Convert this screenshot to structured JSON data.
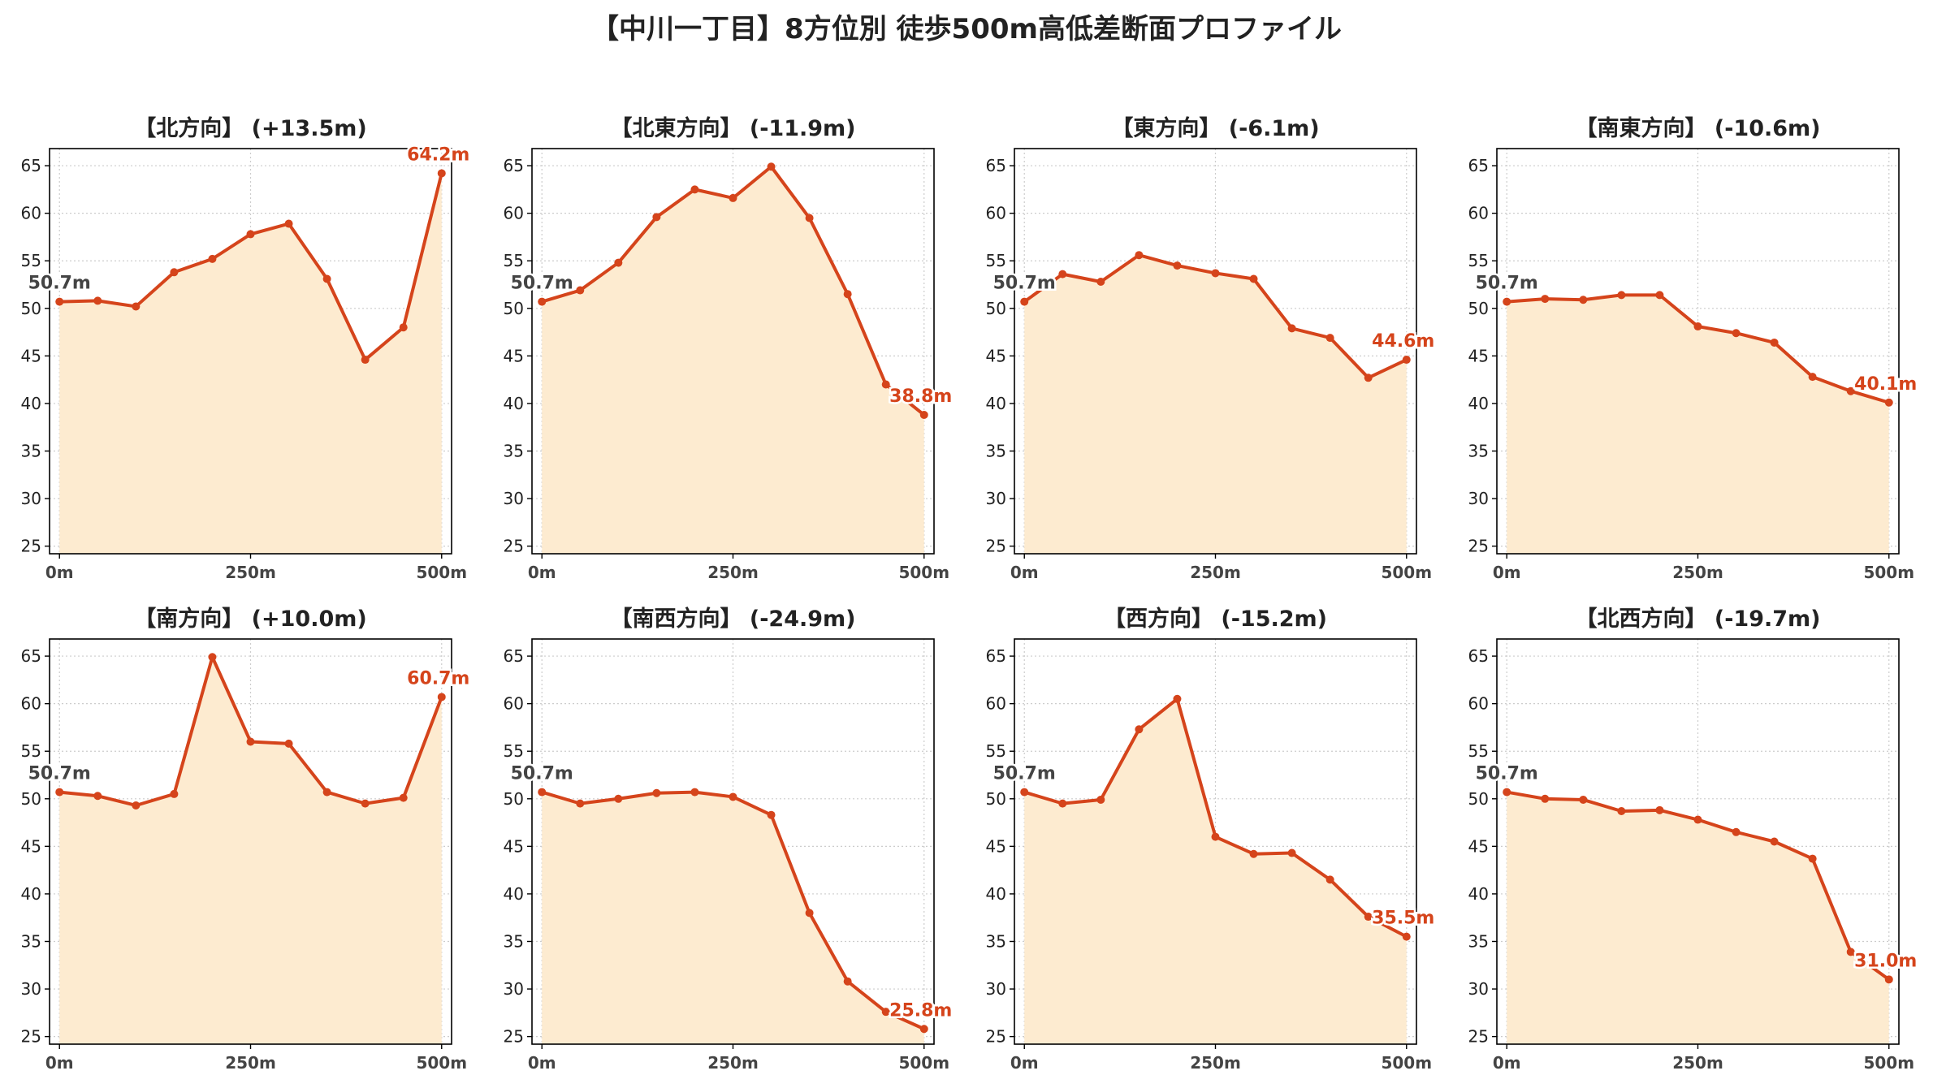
{
  "title": "【中川一丁目】8方位別 徒歩500m高低差断面プロファイル",
  "colors": {
    "line": "#d5441b",
    "fill": "#fdebd0",
    "start_label": "#444444",
    "end_label": "#d5441b",
    "grid": "#cccccc",
    "axis": "#000000"
  },
  "chart_data": [
    {
      "type": "line",
      "title": "【北方向】 (+13.5m)",
      "x": [
        0,
        50,
        100,
        150,
        200,
        250,
        300,
        350,
        400,
        450,
        500
      ],
      "y": [
        50.7,
        50.8,
        50.2,
        53.8,
        55.2,
        57.8,
        58.9,
        53.1,
        44.6,
        48.0,
        64.2
      ],
      "xticks": [
        "0m",
        "250m",
        "500m"
      ],
      "xtick_values": [
        0,
        250,
        500
      ],
      "yticks": [
        25,
        30,
        35,
        40,
        45,
        50,
        55,
        60,
        65
      ],
      "xlim": [
        -13,
        513
      ],
      "ylim": [
        24.2,
        66.8
      ],
      "grid": true,
      "start_label": "50.7m",
      "end_label": "64.2m"
    },
    {
      "type": "line",
      "title": "【北東方向】 (-11.9m)",
      "x": [
        0,
        50,
        100,
        150,
        200,
        250,
        300,
        350,
        400,
        450,
        500
      ],
      "y": [
        50.7,
        51.9,
        54.8,
        59.6,
        62.5,
        61.6,
        64.9,
        59.5,
        51.5,
        42.0,
        38.8
      ],
      "xticks": [
        "0m",
        "250m",
        "500m"
      ],
      "xtick_values": [
        0,
        250,
        500
      ],
      "yticks": [
        25,
        30,
        35,
        40,
        45,
        50,
        55,
        60,
        65
      ],
      "xlim": [
        -13,
        513
      ],
      "ylim": [
        24.2,
        66.8
      ],
      "grid": true,
      "start_label": "50.7m",
      "end_label": "38.8m"
    },
    {
      "type": "line",
      "title": "【東方向】 (-6.1m)",
      "x": [
        0,
        50,
        100,
        150,
        200,
        250,
        300,
        350,
        400,
        450,
        500
      ],
      "y": [
        50.7,
        53.6,
        52.8,
        55.6,
        54.5,
        53.7,
        53.1,
        47.9,
        46.9,
        42.7,
        44.6
      ],
      "xticks": [
        "0m",
        "250m",
        "500m"
      ],
      "xtick_values": [
        0,
        250,
        500
      ],
      "yticks": [
        25,
        30,
        35,
        40,
        45,
        50,
        55,
        60,
        65
      ],
      "xlim": [
        -13,
        513
      ],
      "ylim": [
        24.2,
        66.8
      ],
      "grid": true,
      "start_label": "50.7m",
      "end_label": "44.6m"
    },
    {
      "type": "line",
      "title": "【南東方向】 (-10.6m)",
      "x": [
        0,
        50,
        100,
        150,
        200,
        250,
        300,
        350,
        400,
        450,
        500
      ],
      "y": [
        50.7,
        51.0,
        50.9,
        51.4,
        51.4,
        48.1,
        47.4,
        46.4,
        42.8,
        41.3,
        40.1
      ],
      "xticks": [
        "0m",
        "250m",
        "500m"
      ],
      "xtick_values": [
        0,
        250,
        500
      ],
      "yticks": [
        25,
        30,
        35,
        40,
        45,
        50,
        55,
        60,
        65
      ],
      "xlim": [
        -13,
        513
      ],
      "ylim": [
        24.2,
        66.8
      ],
      "grid": true,
      "start_label": "50.7m",
      "end_label": "40.1m"
    },
    {
      "type": "line",
      "title": "【南方向】 (+10.0m)",
      "x": [
        0,
        50,
        100,
        150,
        200,
        250,
        300,
        350,
        400,
        450,
        500
      ],
      "y": [
        50.7,
        50.3,
        49.3,
        50.5,
        64.9,
        56.0,
        55.8,
        50.7,
        49.5,
        50.1,
        60.7
      ],
      "xticks": [
        "0m",
        "250m",
        "500m"
      ],
      "xtick_values": [
        0,
        250,
        500
      ],
      "yticks": [
        25,
        30,
        35,
        40,
        45,
        50,
        55,
        60,
        65
      ],
      "xlim": [
        -13,
        513
      ],
      "ylim": [
        24.2,
        66.8
      ],
      "grid": true,
      "start_label": "50.7m",
      "end_label": "60.7m"
    },
    {
      "type": "line",
      "title": "【南西方向】 (-24.9m)",
      "x": [
        0,
        50,
        100,
        150,
        200,
        250,
        300,
        350,
        400,
        450,
        500
      ],
      "y": [
        50.7,
        49.5,
        50.0,
        50.6,
        50.7,
        50.2,
        48.3,
        38.0,
        30.8,
        27.6,
        25.8
      ],
      "xticks": [
        "0m",
        "250m",
        "500m"
      ],
      "xtick_values": [
        0,
        250,
        500
      ],
      "yticks": [
        25,
        30,
        35,
        40,
        45,
        50,
        55,
        60,
        65
      ],
      "xlim": [
        -13,
        513
      ],
      "ylim": [
        24.2,
        66.8
      ],
      "grid": true,
      "start_label": "50.7m",
      "end_label": "25.8m"
    },
    {
      "type": "line",
      "title": "【西方向】 (-15.2m)",
      "x": [
        0,
        50,
        100,
        150,
        200,
        250,
        300,
        350,
        400,
        450,
        500
      ],
      "y": [
        50.7,
        49.5,
        49.9,
        57.3,
        60.5,
        46.0,
        44.2,
        44.3,
        41.5,
        37.6,
        35.5
      ],
      "xticks": [
        "0m",
        "250m",
        "500m"
      ],
      "xtick_values": [
        0,
        250,
        500
      ],
      "yticks": [
        25,
        30,
        35,
        40,
        45,
        50,
        55,
        60,
        65
      ],
      "xlim": [
        -13,
        513
      ],
      "ylim": [
        24.2,
        66.8
      ],
      "grid": true,
      "start_label": "50.7m",
      "end_label": "35.5m"
    },
    {
      "type": "line",
      "title": "【北西方向】 (-19.7m)",
      "x": [
        0,
        50,
        100,
        150,
        200,
        250,
        300,
        350,
        400,
        450,
        500
      ],
      "y": [
        50.7,
        50.0,
        49.9,
        48.7,
        48.8,
        47.8,
        46.5,
        45.5,
        43.7,
        33.9,
        31.0
      ],
      "xticks": [
        "0m",
        "250m",
        "500m"
      ],
      "xtick_values": [
        0,
        250,
        500
      ],
      "yticks": [
        25,
        30,
        35,
        40,
        45,
        50,
        55,
        60,
        65
      ],
      "xlim": [
        -13,
        513
      ],
      "ylim": [
        24.2,
        66.8
      ],
      "grid": true,
      "start_label": "50.7m",
      "end_label": "31.0m"
    }
  ]
}
